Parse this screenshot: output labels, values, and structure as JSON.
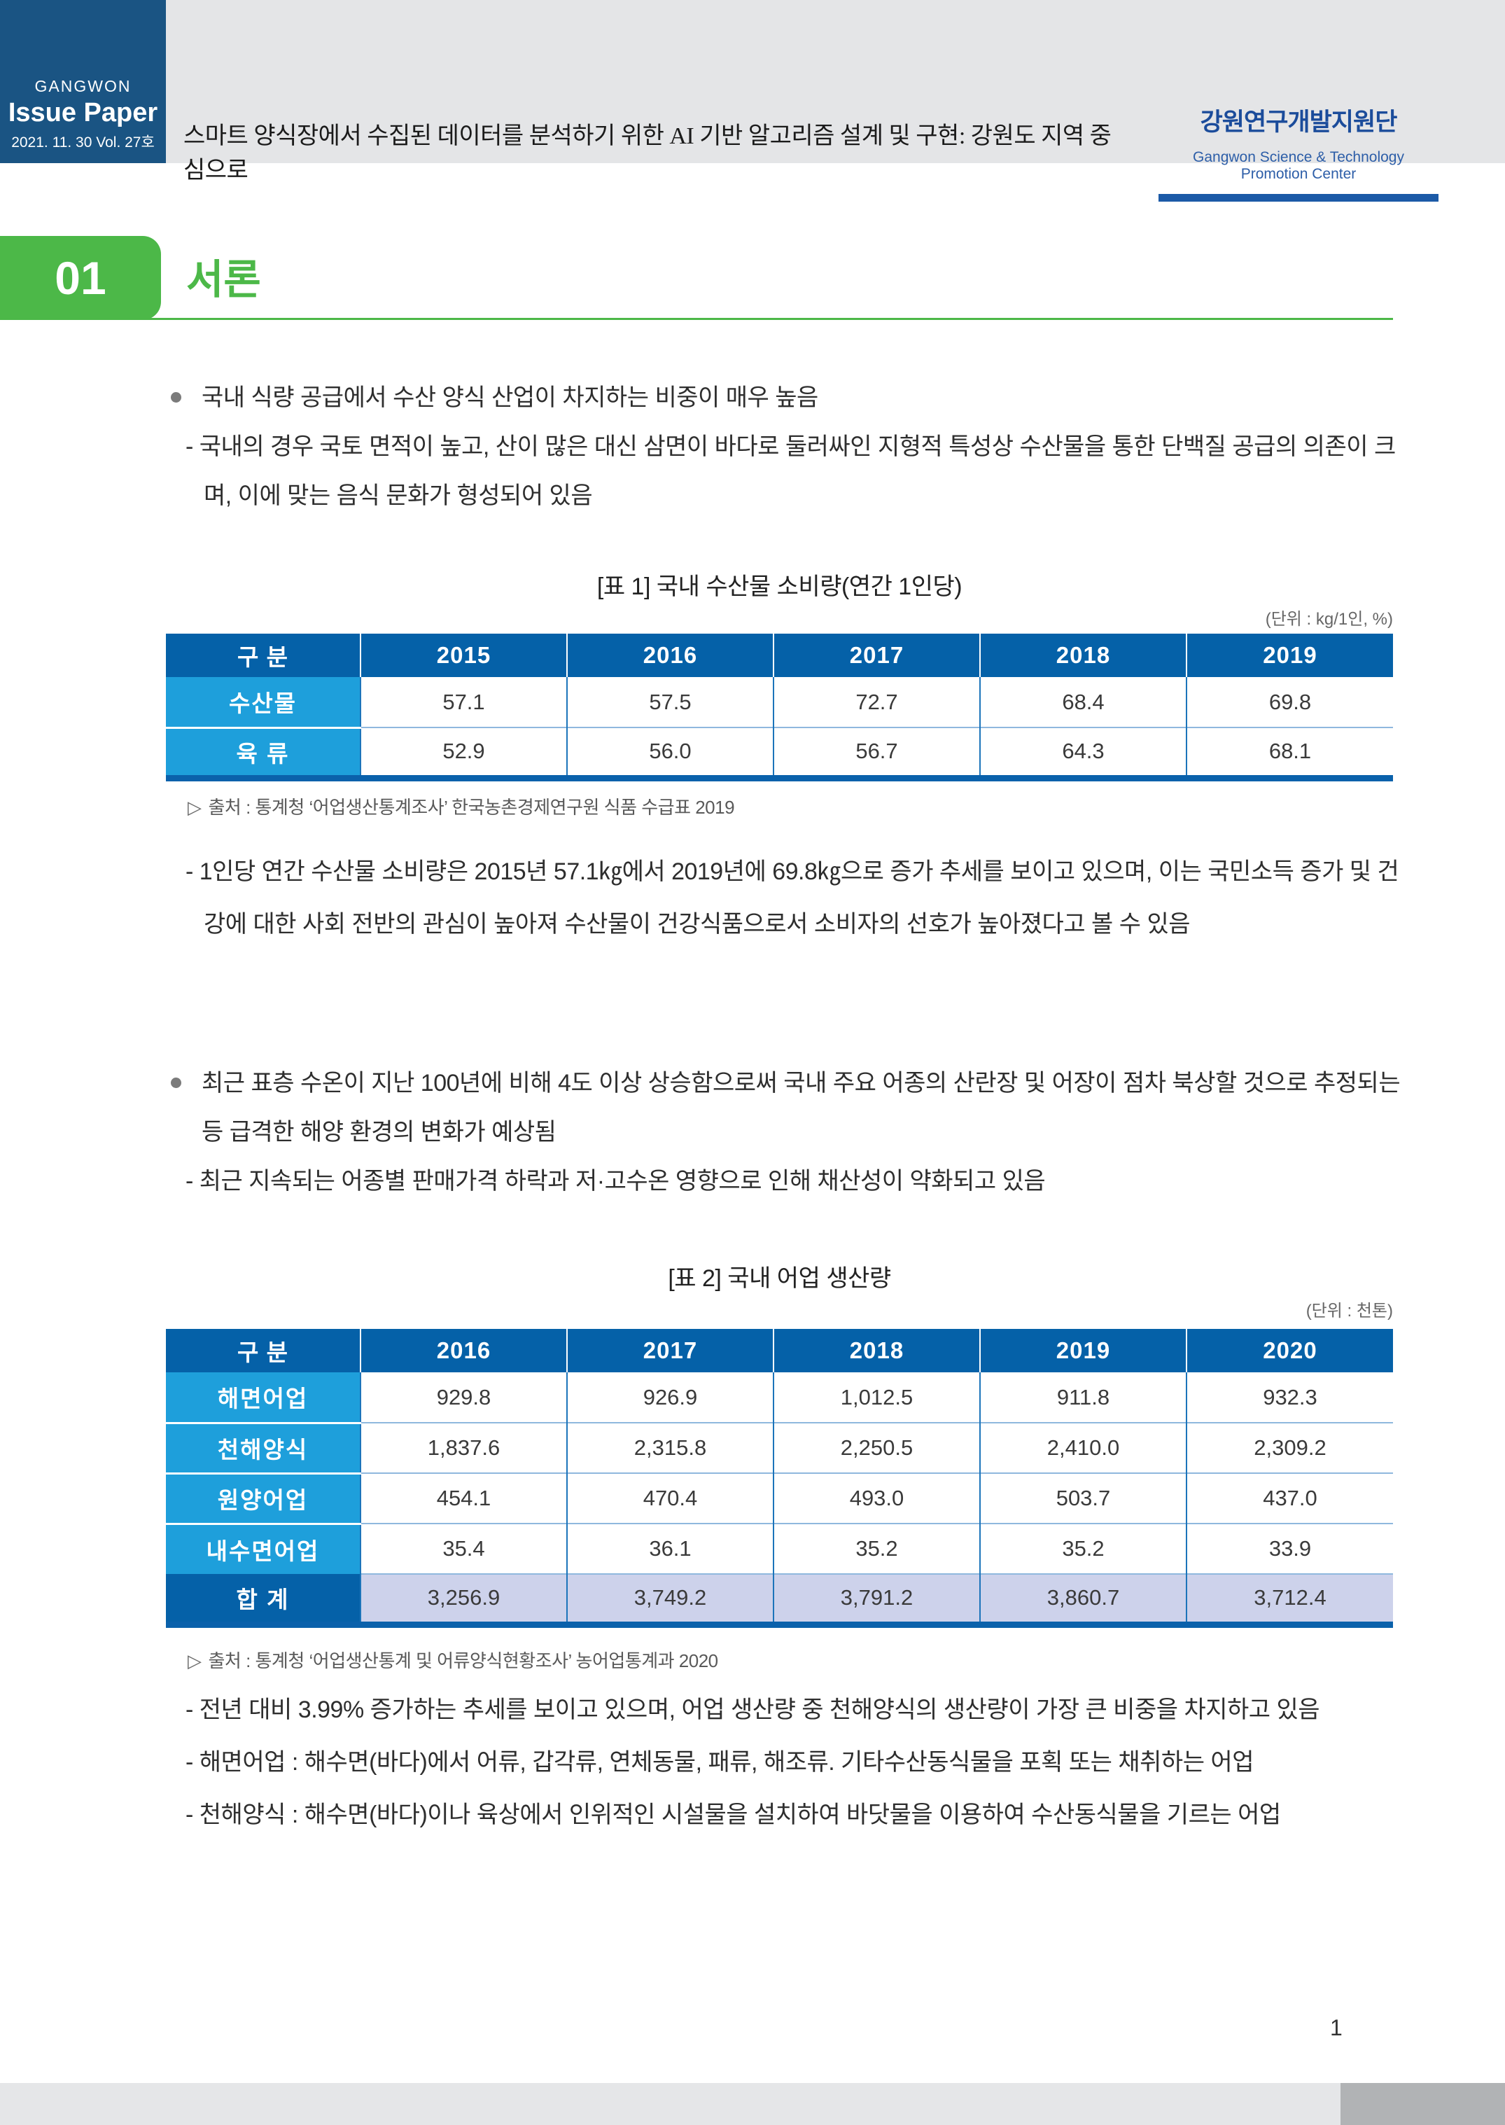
{
  "header": {
    "brand_top": "GANGWON",
    "brand_main": "Issue Paper",
    "brand_date": "2021. 11. 30  Vol. 27호",
    "doc_title": "스마트 양식장에서 수집된 데이터를 분석하기 위한 AI 기반 알고리즘 설계 및 구현: 강원도 지역 중심으로",
    "org_kr": "강원연구개발지원단",
    "org_en": "Gangwon Science & Technology Promotion Center"
  },
  "section": {
    "number": "01",
    "title": "서론"
  },
  "intro": {
    "bullet1": "국내 식량 공급에서 수산 양식 산업이 차지하는 비중이 매우 높음",
    "bullet1_sub": "- 국내의 경우 국토 면적이 높고, 산이 많은 대신 삼면이 바다로 둘러싸인 지형적 특성상 수산물을 통한 단백질 공급의 의존이 크며, 이에 맞는 음식 문화가 형성되어 있음",
    "para1": "- 1인당 연간 수산물 소비량은 2015년 57.1㎏에서 2019년에 69.8㎏으로 증가 추세를 보이고 있으며, 이는 국민소득 증가 및 건강에 대한 사회 전반의 관심이 높아져 수산물이 건강식품으로서 소비자의 선호가 높아졌다고 볼 수 있음",
    "bullet2": "최근 표층 수온이 지난 100년에 비해 4도 이상 상승함으로써 국내 주요 어종의 산란장 및 어장이 점차 북상할 것으로 추정되는 등 급격한 해양 환경의 변화가 예상됨",
    "bullet2_sub": "- 최근 지속되는 어종별 판매가격 하락과 저·고수온 영향으로 인해 채산성이 약화되고 있음",
    "para2_lines": [
      "- 전년 대비 3.99% 증가하는 추세를 보이고 있으며, 어업 생산량 중 천해양식의 생산량이 가장 큰 비중을 차지하고 있음",
      "- 해면어업 : 해수면(바다)에서 어류, 갑각류, 연체동물, 패류, 해조류. 기타수산동식물을 포획 또는 채취하는 어업",
      "- 천해양식 : 해수면(바다)이나 육상에서 인위적인 시설물을 설치하여 바닷물을 이용하여 수산동식물을 기르는 어업"
    ]
  },
  "table1": {
    "caption": "[표 1] 국내 수산물 소비량(연간 1인당)",
    "unit": "(단위 : kg/1인, %)",
    "source_marker": "▷",
    "source": "출처 : 통계청 ‘어업생산통계조사’ 한국농촌경제연구원 식품 수급표 2019",
    "header": [
      "구 분",
      "2015",
      "2016",
      "2017",
      "2018",
      "2019"
    ],
    "rows": [
      {
        "label": "수산물",
        "values": [
          "57.1",
          "57.5",
          "72.7",
          "68.4",
          "69.8"
        ]
      },
      {
        "label": "육 류",
        "values": [
          "52.9",
          "56.0",
          "56.7",
          "64.3",
          "68.1"
        ]
      }
    ]
  },
  "table2": {
    "caption": "[표 2] 국내 어업 생산량",
    "unit": "(단위 : 천톤)",
    "source_marker": "▷",
    "source": "출처 : 통계청 ‘어업생산통계 및 어류양식현황조사’ 농어업통계과 2020",
    "header": [
      "구 분",
      "2016",
      "2017",
      "2018",
      "2019",
      "2020"
    ],
    "rows": [
      {
        "label": "해면어업",
        "values": [
          "929.8",
          "926.9",
          "1,012.5",
          "911.8",
          "932.3"
        ]
      },
      {
        "label": "천해양식",
        "values": [
          "1,837.6",
          "2,315.8",
          "2,250.5",
          "2,410.0",
          "2,309.2"
        ]
      },
      {
        "label": "원양어업",
        "values": [
          "454.1",
          "470.4",
          "493.0",
          "503.7",
          "437.0"
        ]
      },
      {
        "label": "내수면어업",
        "values": [
          "35.4",
          "36.1",
          "35.2",
          "35.2",
          "33.9"
        ]
      }
    ],
    "total_row": {
      "label": "합 계",
      "values": [
        "3,256.9",
        "3,749.2",
        "3,791.2",
        "3,860.7",
        "3,712.4"
      ]
    }
  },
  "page_number": "1",
  "colors": {
    "navy_block": "#1a5483",
    "header_strip": "#e4e5e7",
    "accent_green": "#4cb848",
    "table_header_blue": "#0561a8",
    "table_label_blue": "#1e9fdb",
    "table_total_bg": "#cdd2eb",
    "org_blue": "#1b4c9b",
    "footer_gray": "#e5e6e8",
    "footer_dark_gray": "#b1b3b5"
  }
}
